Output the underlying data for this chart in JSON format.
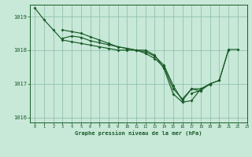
{
  "title": "Graphe pression niveau de la mer (hPa)",
  "background_color": "#c8e8d8",
  "plot_bg_color": "#c8e8d8",
  "grid_color": "#88bbaa",
  "line_color": "#1a5c28",
  "xlim": [
    -0.5,
    23
  ],
  "ylim": [
    1015.85,
    1019.35
  ],
  "yticks": [
    1016,
    1017,
    1018,
    1019
  ],
  "xticks": [
    0,
    1,
    2,
    3,
    4,
    5,
    6,
    7,
    8,
    9,
    10,
    11,
    12,
    13,
    14,
    15,
    16,
    17,
    18,
    19,
    20,
    21,
    22,
    23
  ],
  "lines": [
    {
      "x": [
        0,
        1,
        2,
        3,
        4,
        5,
        6,
        7,
        8,
        9,
        10,
        11,
        12,
        13,
        14,
        15,
        16,
        17,
        18,
        19,
        20,
        21
      ],
      "y": [
        1019.25,
        1018.9,
        1018.6,
        1018.3,
        1018.25,
        1018.2,
        1018.15,
        1018.1,
        1018.05,
        1018.0,
        1018.0,
        1018.0,
        1018.0,
        1017.85,
        1017.45,
        1016.7,
        1016.45,
        1016.5,
        1016.85,
        1017.0,
        1017.1,
        1018.0
      ]
    },
    {
      "x": [
        3,
        4,
        5,
        6,
        7,
        8,
        9,
        10,
        11,
        12,
        13,
        14,
        15,
        16,
        17,
        18,
        19
      ],
      "y": [
        1018.6,
        1018.55,
        1018.5,
        1018.4,
        1018.3,
        1018.2,
        1018.1,
        1018.05,
        1018.0,
        1017.9,
        1017.75,
        1017.5,
        1016.85,
        1016.55,
        1016.85,
        1016.85,
        1016.98
      ]
    },
    {
      "x": [
        3,
        4,
        5,
        6,
        7,
        8,
        9,
        10,
        11,
        12,
        13,
        14,
        15,
        16,
        17,
        18
      ],
      "y": [
        1018.35,
        1018.42,
        1018.38,
        1018.28,
        1018.22,
        1018.16,
        1018.1,
        1018.05,
        1018.0,
        1017.95,
        1017.82,
        1017.55,
        1016.95,
        1016.5,
        1016.85,
        1016.78
      ]
    },
    {
      "x": [
        17,
        18,
        19,
        20,
        21,
        22
      ],
      "y": [
        1016.72,
        1016.8,
        1017.0,
        1017.1,
        1018.02,
        1018.02
      ]
    }
  ]
}
